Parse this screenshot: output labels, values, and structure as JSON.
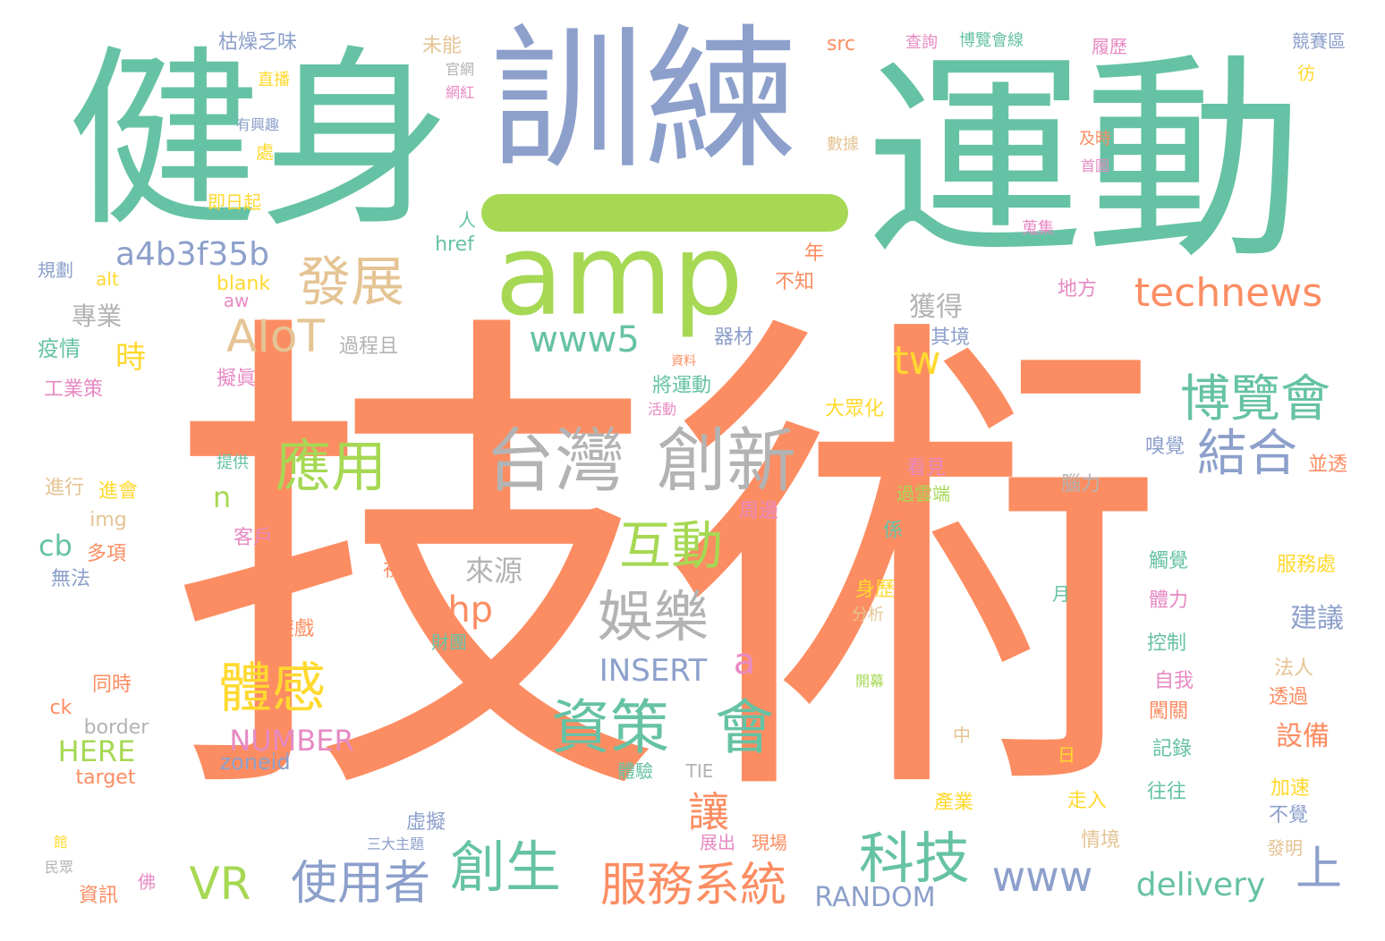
{
  "palette": {
    "green": "#66c2a5",
    "orange": "#fc8d62",
    "blue": "#8da0cb",
    "pink": "#e78ac3",
    "lime": "#a6d854",
    "yellow": "#ffd92f",
    "tan": "#e5c494",
    "gray": "#b3b3b3"
  },
  "words": [
    {
      "text": "技術",
      "color": "orange"
    },
    {
      "text": "運動",
      "color": "green"
    },
    {
      "text": "健身",
      "color": "green"
    },
    {
      "text": "訓練",
      "color": "blue"
    },
    {
      "text": "amp",
      "color": "lime"
    },
    {
      "text": "台灣",
      "color": "gray"
    },
    {
      "text": "創新",
      "color": "gray"
    },
    {
      "text": "technews",
      "color": "orange"
    },
    {
      "text": "發展",
      "color": "tan"
    },
    {
      "text": "AIoT",
      "color": "tan"
    },
    {
      "text": "博覽會",
      "color": "green"
    },
    {
      "text": "結合",
      "color": "blue"
    },
    {
      "text": "應用",
      "color": "lime"
    },
    {
      "text": "資策",
      "color": "green"
    },
    {
      "text": "會",
      "color": "green"
    },
    {
      "text": "體感",
      "color": "yellow"
    },
    {
      "text": "互動",
      "color": "lime"
    },
    {
      "text": "娛樂",
      "color": "gray"
    },
    {
      "text": "科技",
      "color": "green"
    },
    {
      "text": "使用者",
      "color": "blue"
    },
    {
      "text": "創生",
      "color": "green"
    },
    {
      "text": "服務系統",
      "color": "orange"
    },
    {
      "text": "VR",
      "color": "lime"
    },
    {
      "text": "www5",
      "color": "green"
    },
    {
      "text": "a4b3f35b",
      "color": "blue"
    },
    {
      "text": "tw",
      "color": "yellow"
    },
    {
      "text": "www",
      "color": "blue"
    },
    {
      "text": "delivery",
      "color": "green"
    },
    {
      "text": "上",
      "color": "blue"
    },
    {
      "text": "讓",
      "color": "orange"
    },
    {
      "text": "php",
      "color": "orange"
    },
    {
      "text": "來源",
      "color": "gray"
    },
    {
      "text": "INSERT",
      "color": "blue"
    },
    {
      "text": "a",
      "color": "pink"
    },
    {
      "text": "NUMBER",
      "color": "pink"
    },
    {
      "text": "RANDOM",
      "color": "blue"
    },
    {
      "text": "HERE",
      "color": "lime"
    },
    {
      "text": "zoneid",
      "color": "blue"
    },
    {
      "text": "n",
      "color": "lime"
    },
    {
      "text": "cb",
      "color": "green"
    },
    {
      "text": "專業",
      "color": "gray"
    },
    {
      "text": "時",
      "color": "yellow"
    },
    {
      "text": "獲得",
      "color": "gray"
    },
    {
      "text": "其境",
      "color": "blue"
    },
    {
      "text": "建議",
      "color": "blue"
    },
    {
      "text": "設備",
      "color": "orange"
    },
    {
      "text": "過程且",
      "color": "gray"
    },
    {
      "text": "疫情",
      "color": "green"
    },
    {
      "text": "工業策",
      "color": "pink"
    },
    {
      "text": "擬眞",
      "color": "pink"
    },
    {
      "text": "器材",
      "color": "blue"
    },
    {
      "text": "將運動",
      "color": "green"
    },
    {
      "text": "大眾化",
      "color": "yellow"
    },
    {
      "text": "周邊",
      "color": "pink"
    },
    {
      "text": "看見",
      "color": "pink"
    },
    {
      "text": "過雲端",
      "color": "lime"
    },
    {
      "text": "客戶",
      "color": "pink"
    },
    {
      "text": "視覺",
      "color": "orange"
    },
    {
      "text": "玩遊戲",
      "color": "orange"
    },
    {
      "text": "財團",
      "color": "green"
    },
    {
      "text": "同時",
      "color": "orange"
    },
    {
      "text": "多項",
      "color": "orange"
    },
    {
      "text": "無法",
      "color": "blue"
    },
    {
      "text": "進會",
      "color": "yellow"
    },
    {
      "text": "進行",
      "color": "tan"
    },
    {
      "text": "img",
      "color": "tan"
    },
    {
      "text": "border",
      "color": "gray"
    },
    {
      "text": "target",
      "color": "orange"
    },
    {
      "text": "ck",
      "color": "orange"
    },
    {
      "text": "體驗",
      "color": "green"
    },
    {
      "text": "TIE",
      "color": "gray"
    },
    {
      "text": "虛擬",
      "color": "blue"
    },
    {
      "text": "三大主題",
      "color": "blue"
    },
    {
      "text": "展出",
      "color": "pink"
    },
    {
      "text": "現場",
      "color": "orange"
    },
    {
      "text": "中",
      "color": "tan"
    },
    {
      "text": "日",
      "color": "yellow"
    },
    {
      "text": "產業",
      "color": "yellow"
    },
    {
      "text": "走入",
      "color": "yellow"
    },
    {
      "text": "往往",
      "color": "green"
    },
    {
      "text": "記錄",
      "color": "green"
    },
    {
      "text": "闖關",
      "color": "orange"
    },
    {
      "text": "自我",
      "color": "pink"
    },
    {
      "text": "控制",
      "color": "green"
    },
    {
      "text": "體力",
      "color": "pink"
    },
    {
      "text": "觸覺",
      "color": "green"
    },
    {
      "text": "服務處",
      "color": "yellow"
    },
    {
      "text": "法人",
      "color": "tan"
    },
    {
      "text": "透過",
      "color": "orange"
    },
    {
      "text": "加速",
      "color": "yellow"
    },
    {
      "text": "不覺",
      "color": "blue"
    },
    {
      "text": "情境",
      "color": "tan"
    },
    {
      "text": "發明",
      "color": "tan"
    },
    {
      "text": "並透",
      "color": "orange"
    },
    {
      "text": "嗅覺",
      "color": "blue"
    },
    {
      "text": "腦力",
      "color": "gray"
    },
    {
      "text": "月",
      "color": "green"
    },
    {
      "text": "身歷",
      "color": "yellow"
    },
    {
      "text": "分析",
      "color": "tan"
    },
    {
      "text": "係",
      "color": "green"
    },
    {
      "text": "開幕",
      "color": "lime"
    },
    {
      "text": "地方",
      "color": "pink"
    },
    {
      "text": "不知",
      "color": "orange"
    },
    {
      "text": "年",
      "color": "orange"
    },
    {
      "text": "人",
      "color": "green"
    },
    {
      "text": "href",
      "color": "green"
    },
    {
      "text": "alt",
      "color": "yellow"
    },
    {
      "text": "blank",
      "color": "yellow"
    },
    {
      "text": "aw",
      "color": "pink"
    },
    {
      "text": "規劃",
      "color": "blue"
    },
    {
      "text": "即日起",
      "color": "yellow"
    },
    {
      "text": "處",
      "color": "yellow"
    },
    {
      "text": "有興趣",
      "color": "blue"
    },
    {
      "text": "直播",
      "color": "yellow"
    },
    {
      "text": "枯燥乏味",
      "color": "blue"
    },
    {
      "text": "未能",
      "color": "tan"
    },
    {
      "text": "官網",
      "color": "gray"
    },
    {
      "text": "網紅",
      "color": "pink"
    },
    {
      "text": "src",
      "color": "orange"
    },
    {
      "text": "查詢",
      "color": "pink"
    },
    {
      "text": "博覽會線",
      "color": "green"
    },
    {
      "text": "履歷",
      "color": "pink"
    },
    {
      "text": "競賽區",
      "color": "blue"
    },
    {
      "text": "彷",
      "color": "yellow"
    },
    {
      "text": "及時",
      "color": "orange"
    },
    {
      "text": "首圖",
      "color": "pink"
    },
    {
      "text": "數據",
      "color": "tan"
    },
    {
      "text": "蒐集",
      "color": "pink"
    },
    {
      "text": "資料",
      "color": "orange"
    },
    {
      "text": "活動",
      "color": "pink"
    },
    {
      "text": "提供",
      "color": "green"
    },
    {
      "text": "館",
      "color": "yellow"
    },
    {
      "text": "民眾",
      "color": "gray"
    },
    {
      "text": "佛",
      "color": "pink"
    },
    {
      "text": "資訊",
      "color": "orange"
    }
  ]
}
